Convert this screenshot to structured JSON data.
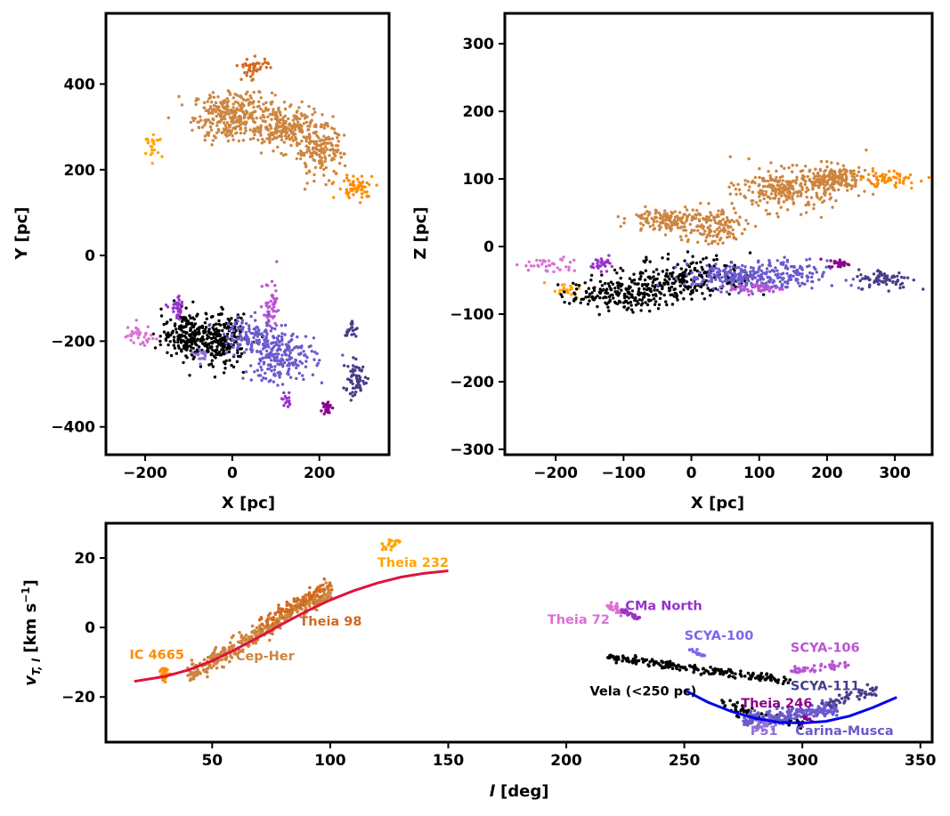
{
  "colors": {
    "cep_her": "#cd853f",
    "theia98": "#d2691e",
    "ic4665": "#ff8c00",
    "theia232": "#ffa500",
    "vela": "#000000",
    "theia72": "#da70d6",
    "cma_north": "#9932cc",
    "scya100": "#7b68ee",
    "scya106": "#ba55d3",
    "scya111": "#483d8b",
    "theia246": "#8b008b",
    "p51": "#9370db",
    "carina_musca": "#6a5acd",
    "fit_red": "#dc143c",
    "fit_blue": "#0000ee"
  },
  "chart_data": [
    {
      "type": "scatter",
      "panel": "top-left",
      "xlabel": "X [pc]",
      "ylabel": "Y [pc]",
      "xlim": [
        -290,
        360
      ],
      "ylim": [
        -465,
        565
      ],
      "xticks": [
        -200,
        0,
        200
      ],
      "yticks": [
        -400,
        -200,
        0,
        200,
        400
      ],
      "clusters": [
        {
          "name": "Cep-Her",
          "color": "cep_her",
          "n": 700,
          "parts": [
            {
              "cx": 0,
              "cy": 325,
              "sx": 45,
              "sy": 28,
              "w": 0.45
            },
            {
              "cx": 115,
              "cy": 300,
              "sx": 40,
              "sy": 25,
              "w": 0.3
            },
            {
              "cx": 200,
              "cy": 245,
              "sx": 28,
              "sy": 30,
              "w": 0.25
            }
          ]
        },
        {
          "name": "Theia 98",
          "color": "theia98",
          "n": 45,
          "parts": [
            {
              "cx": 50,
              "cy": 440,
              "sx": 18,
              "sy": 12,
              "w": 1
            }
          ]
        },
        {
          "name": "Theia 232",
          "color": "theia232",
          "n": 22,
          "parts": [
            {
              "cx": -180,
              "cy": 255,
              "sx": 10,
              "sy": 12,
              "w": 1
            }
          ]
        },
        {
          "name": "IC 4665",
          "color": "ic4665",
          "n": 60,
          "parts": [
            {
              "cx": 285,
              "cy": 160,
              "sx": 22,
              "sy": 14,
              "w": 1
            }
          ]
        },
        {
          "name": "Vela",
          "color": "vela",
          "n": 420,
          "parts": [
            {
              "cx": -100,
              "cy": -185,
              "sx": 30,
              "sy": 28,
              "w": 0.5
            },
            {
              "cx": -20,
              "cy": -200,
              "sx": 25,
              "sy": 30,
              "w": 0.5
            }
          ]
        },
        {
          "name": "Theia 72",
          "color": "theia72",
          "n": 35,
          "parts": [
            {
              "cx": -215,
              "cy": -185,
              "sx": 18,
              "sy": 12,
              "w": 1
            }
          ]
        },
        {
          "name": "CMa North",
          "color": "cma_north",
          "n": 30,
          "parts": [
            {
              "cx": -125,
              "cy": -125,
              "sx": 9,
              "sy": 12,
              "w": 1
            }
          ]
        },
        {
          "name": "SCYA-106",
          "color": "scya106",
          "n": 50,
          "parts": [
            {
              "cx": 90,
              "cy": -130,
              "sx": 10,
              "sy": 35,
              "w": 1
            }
          ]
        },
        {
          "name": "Carina-Musca",
          "color": "carina_musca",
          "n": 320,
          "parts": [
            {
              "cx": 110,
              "cy": -235,
              "sx": 40,
              "sy": 30,
              "w": 0.7
            },
            {
              "cx": 40,
              "cy": -185,
              "sx": 30,
              "sy": 20,
              "w": 0.3
            }
          ]
        },
        {
          "name": "P51",
          "color": "p51",
          "n": 15,
          "parts": [
            {
              "cx": -70,
              "cy": -230,
              "sx": 10,
              "sy": 8,
              "w": 1
            }
          ]
        },
        {
          "name": "SCYA-100",
          "color": "cma_north",
          "n": 14,
          "parts": [
            {
              "cx": 125,
              "cy": -345,
              "sx": 6,
              "sy": 10,
              "w": 1
            }
          ]
        },
        {
          "name": "SCYA-111",
          "color": "scya111",
          "n": 80,
          "parts": [
            {
              "cx": 285,
              "cy": -290,
              "sx": 15,
              "sy": 20,
              "w": 0.75
            },
            {
              "cx": 270,
              "cy": -170,
              "sx": 8,
              "sy": 12,
              "w": 0.25
            }
          ]
        },
        {
          "name": "Theia 246",
          "color": "theia246",
          "n": 25,
          "parts": [
            {
              "cx": 220,
              "cy": -355,
              "sx": 5,
              "sy": 8,
              "w": 1
            }
          ]
        }
      ]
    },
    {
      "type": "scatter",
      "panel": "top-right",
      "xlabel": "X [pc]",
      "ylabel": "Z [pc]",
      "xlim": [
        -275,
        355
      ],
      "ylim": [
        -308,
        345
      ],
      "xticks": [
        -200,
        -100,
        0,
        100,
        200,
        300
      ],
      "yticks": [
        -300,
        -200,
        -100,
        0,
        100,
        200,
        300
      ],
      "clusters": [
        {
          "name": "Cep-Her",
          "color": "cep_her",
          "n": 700,
          "parts": [
            {
              "cx": -40,
              "cy": 40,
              "sx": 25,
              "sy": 8,
              "w": 0.2
            },
            {
              "cx": 30,
              "cy": 30,
              "sx": 25,
              "sy": 15,
              "w": 0.2
            },
            {
              "cx": 140,
              "cy": 85,
              "sx": 35,
              "sy": 15,
              "w": 0.35
            },
            {
              "cx": 210,
              "cy": 100,
              "sx": 25,
              "sy": 10,
              "w": 0.25
            }
          ]
        },
        {
          "name": "IC 4665",
          "color": "ic4665",
          "n": 60,
          "parts": [
            {
              "cx": 290,
              "cy": 100,
              "sx": 22,
              "sy": 6,
              "w": 1
            }
          ]
        },
        {
          "name": "Theia 232",
          "color": "theia232",
          "n": 22,
          "parts": [
            {
              "cx": -185,
              "cy": -65,
              "sx": 15,
              "sy": 5,
              "w": 1
            }
          ]
        },
        {
          "name": "Vela",
          "color": "vela",
          "n": 420,
          "parts": [
            {
              "cx": -100,
              "cy": -70,
              "sx": 40,
              "sy": 12,
              "w": 0.5
            },
            {
              "cx": 0,
              "cy": -45,
              "sx": 45,
              "sy": 15,
              "w": 0.5
            }
          ]
        },
        {
          "name": "Theia 72",
          "color": "theia72",
          "n": 35,
          "parts": [
            {
              "cx": -215,
              "cy": -28,
              "sx": 22,
              "sy": 6,
              "w": 1
            }
          ]
        },
        {
          "name": "CMa North",
          "color": "cma_north",
          "n": 30,
          "parts": [
            {
              "cx": -130,
              "cy": -25,
              "sx": 10,
              "sy": 5,
              "w": 1
            }
          ]
        },
        {
          "name": "Carina-Musca",
          "color": "carina_musca",
          "n": 320,
          "parts": [
            {
              "cx": 110,
              "cy": -45,
              "sx": 45,
              "sy": 12,
              "w": 0.75
            },
            {
              "cx": 50,
              "cy": -45,
              "sx": 30,
              "sy": 8,
              "w": 0.25
            }
          ]
        },
        {
          "name": "SCYA-106",
          "color": "scya106",
          "n": 50,
          "parts": [
            {
              "cx": 95,
              "cy": -62,
              "sx": 20,
              "sy": 4,
              "w": 1
            }
          ]
        },
        {
          "name": "SCYA-111",
          "color": "scya111",
          "n": 80,
          "parts": [
            {
              "cx": 285,
              "cy": -48,
              "sx": 20,
              "sy": 7,
              "w": 1
            }
          ]
        },
        {
          "name": "Theia 246",
          "color": "theia246",
          "n": 25,
          "parts": [
            {
              "cx": 218,
              "cy": -25,
              "sx": 8,
              "sy": 3,
              "w": 1
            }
          ]
        }
      ]
    },
    {
      "type": "scatter",
      "panel": "bottom",
      "xlabel": "l [deg]",
      "ylabel": "v_T,l [km s^-1]",
      "xlim": [
        5,
        355
      ],
      "ylim": [
        -33,
        30
      ],
      "xticks": [
        50,
        100,
        150,
        200,
        250,
        300,
        350
      ],
      "yticks": [
        -20,
        0,
        20
      ],
      "clusters": [
        {
          "name": "Cep-Her",
          "color": "cep_her",
          "n": 380,
          "lines": [
            {
              "x0": 40,
              "x1": 100,
              "y0": -14,
              "y1": 11,
              "noise": 1.4,
              "w": 1
            }
          ]
        },
        {
          "name": "Theia 98",
          "color": "theia98",
          "n": 90,
          "lines": [
            {
              "x0": 70,
              "x1": 100,
              "y0": 1,
              "y1": 12,
              "noise": 1.2,
              "w": 1
            }
          ]
        },
        {
          "name": "IC 4665",
          "color": "ic4665",
          "n": 25,
          "parts": [
            {
              "cx": 30,
              "cy": -13,
              "sx": 1,
              "sy": 1.2,
              "w": 1
            }
          ]
        },
        {
          "name": "Theia 232",
          "color": "theia232",
          "n": 22,
          "lines": [
            {
              "x0": 121,
              "x1": 130,
              "y0": 22.5,
              "y1": 25.5,
              "noise": 0.7,
              "w": 1
            }
          ]
        },
        {
          "name": "Vela",
          "color": "vela",
          "n": 260,
          "lines": [
            {
              "x0": 218,
              "x1": 295,
              "y0": -8.5,
              "y1": -15.5,
              "noise": 0.6,
              "w": 0.75
            },
            {
              "x0": 265,
              "x1": 300,
              "y0": -22,
              "y1": -28,
              "noise": 0.9,
              "w": 0.25
            }
          ]
        },
        {
          "name": "Theia 72",
          "color": "theia72",
          "n": 28,
          "lines": [
            {
              "x0": 218,
              "x1": 224,
              "y0": 6.5,
              "y1": 4.5,
              "noise": 0.5,
              "w": 1
            }
          ]
        },
        {
          "name": "CMa North",
          "color": "cma_north",
          "n": 28,
          "lines": [
            {
              "x0": 223,
              "x1": 231,
              "y0": 5,
              "y1": 2.5,
              "noise": 0.4,
              "w": 1
            }
          ]
        },
        {
          "name": "SCYA-100",
          "color": "scya100",
          "n": 14,
          "lines": [
            {
              "x0": 252,
              "x1": 259,
              "y0": -6,
              "y1": -8.5,
              "noise": 0.3,
              "w": 1
            }
          ]
        },
        {
          "name": "SCYA-106",
          "color": "scya106",
          "n": 45,
          "lines": [
            {
              "x0": 296,
              "x1": 320,
              "y0": -12.5,
              "y1": -10.5,
              "noise": 0.5,
              "w": 1
            }
          ]
        },
        {
          "name": "Carina-Musca",
          "color": "carina_musca",
          "n": 240,
          "lines": [
            {
              "x0": 275,
              "x1": 315,
              "y0": -27,
              "y1": -23,
              "noise": 1.0,
              "w": 1
            }
          ]
        },
        {
          "name": "P51",
          "color": "p51",
          "n": 20,
          "parts": [
            {
              "cx": 283,
              "cy": -28,
              "sx": 2,
              "sy": 0.8,
              "w": 1
            }
          ]
        },
        {
          "name": "SCYA-111",
          "color": "scya111",
          "n": 45,
          "lines": [
            {
              "x0": 310,
              "x1": 332,
              "y0": -22,
              "y1": -18,
              "noise": 0.8,
              "w": 1
            }
          ]
        },
        {
          "name": "Theia 246",
          "color": "theia246",
          "n": 10,
          "parts": [
            {
              "cx": 302,
              "cy": -26,
              "sx": 1,
              "sy": 0.8,
              "w": 1
            }
          ]
        }
      ],
      "curves": [
        {
          "name": "fit-red",
          "color": "fit_red",
          "points": [
            [
              17,
              -15.5
            ],
            [
              30,
              -14.1
            ],
            [
              40,
              -12.2
            ],
            [
              50,
              -9.6
            ],
            [
              60,
              -6.3
            ],
            [
              70,
              -2.7
            ],
            [
              80,
              1.1
            ],
            [
              90,
              4.7
            ],
            [
              100,
              7.9
            ],
            [
              110,
              10.6
            ],
            [
              120,
              12.8
            ],
            [
              130,
              14.5
            ],
            [
              140,
              15.6
            ],
            [
              150,
              16.3
            ]
          ]
        },
        {
          "name": "fit-blue",
          "color": "fit_blue",
          "points": [
            [
              250,
              -18.0
            ],
            [
              260,
              -21.5
            ],
            [
              270,
              -24.2
            ],
            [
              280,
              -26.1
            ],
            [
              290,
              -27.3
            ],
            [
              300,
              -27.5
            ],
            [
              310,
              -27.0
            ],
            [
              320,
              -25.5
            ],
            [
              330,
              -23.0
            ],
            [
              340,
              -20.1
            ]
          ]
        }
      ],
      "annotations": [
        {
          "text": "Theia 232",
          "color": "theia232",
          "x": 120,
          "y": 17.5
        },
        {
          "text": "Theia 98",
          "color": "theia98",
          "x": 87,
          "y": 0.5
        },
        {
          "text": "IC 4665",
          "color": "ic4665",
          "x": 15,
          "y": -9.0
        },
        {
          "text": "Cep-Her",
          "color": "cep_her",
          "x": 60,
          "y": -9.5
        },
        {
          "text": "CMa North",
          "color": "cma_north",
          "x": 225,
          "y": 5.0
        },
        {
          "text": "Theia 72",
          "color": "theia72",
          "x": 192,
          "y": 1.0
        },
        {
          "text": "SCYA-100",
          "color": "scya100",
          "x": 250,
          "y": -3.5
        },
        {
          "text": "SCYA-106",
          "color": "scya106",
          "x": 295,
          "y": -7.0
        },
        {
          "text": "Vela (<250 pc)",
          "color": "vela",
          "x": 210,
          "y": -19.5
        },
        {
          "text": "SCYA-111",
          "color": "scya111",
          "x": 295,
          "y": -18.0
        },
        {
          "text": "Theia 246",
          "color": "theia246",
          "x": 274,
          "y": -23.0
        },
        {
          "text": "P51",
          "color": "p51",
          "x": 278,
          "y": -31.0
        },
        {
          "text": "Carina-Musca",
          "color": "carina_musca",
          "x": 297,
          "y": -31.0
        }
      ]
    }
  ]
}
